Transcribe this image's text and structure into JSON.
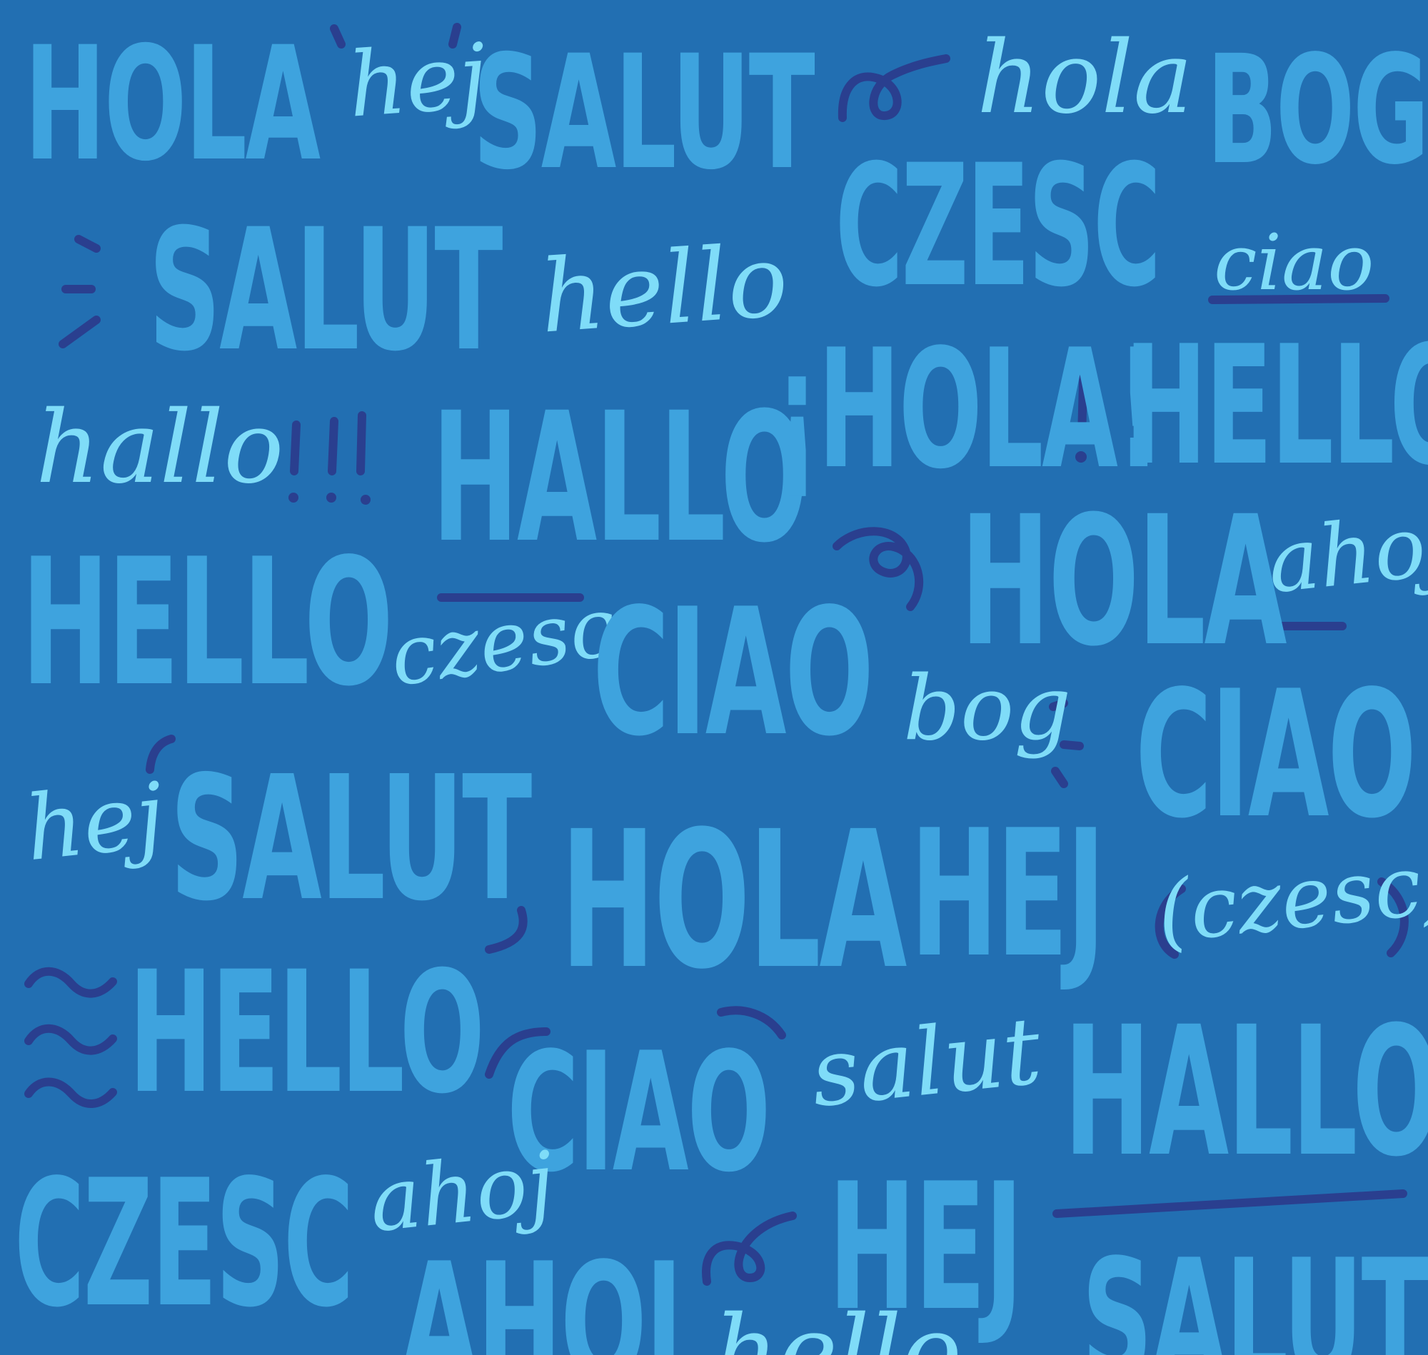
{
  "colors": {
    "background": "#226fb2",
    "block_letters": "#3ea3de",
    "script_letters": "#7fdcf8",
    "doodles": "#2a3f8f"
  },
  "words": {
    "w1": "HOLA",
    "w2": "hej",
    "w3": "SALUT",
    "w4": "hola",
    "w5": "BOG",
    "w6": "CZESC",
    "w7": "SALUT",
    "w8": "hello",
    "w9": "ciao",
    "w10": "hallo",
    "w11": "!!!",
    "w12": "HALLO",
    "w13": "¡HOLA!",
    "w14": "HELLO",
    "w15": "HELLO",
    "w16": "HOLA",
    "w17": "ahoj",
    "w18": "czesc",
    "w19": "CIAO",
    "w20": "bog",
    "w21": "CIAO",
    "w22": "hej",
    "w23": "SALUT",
    "w24": "HOLA",
    "w25": "HEJ",
    "w26": "(czesc)",
    "w27": "HELLO",
    "w28": "CIAO",
    "w29": "salut",
    "w30": "HALLO",
    "w31": "CZESC",
    "w32": "ahoj",
    "w33": "HEJ",
    "w34": "AHOJ",
    "w35": "SALUT",
    "w36": "hello"
  }
}
